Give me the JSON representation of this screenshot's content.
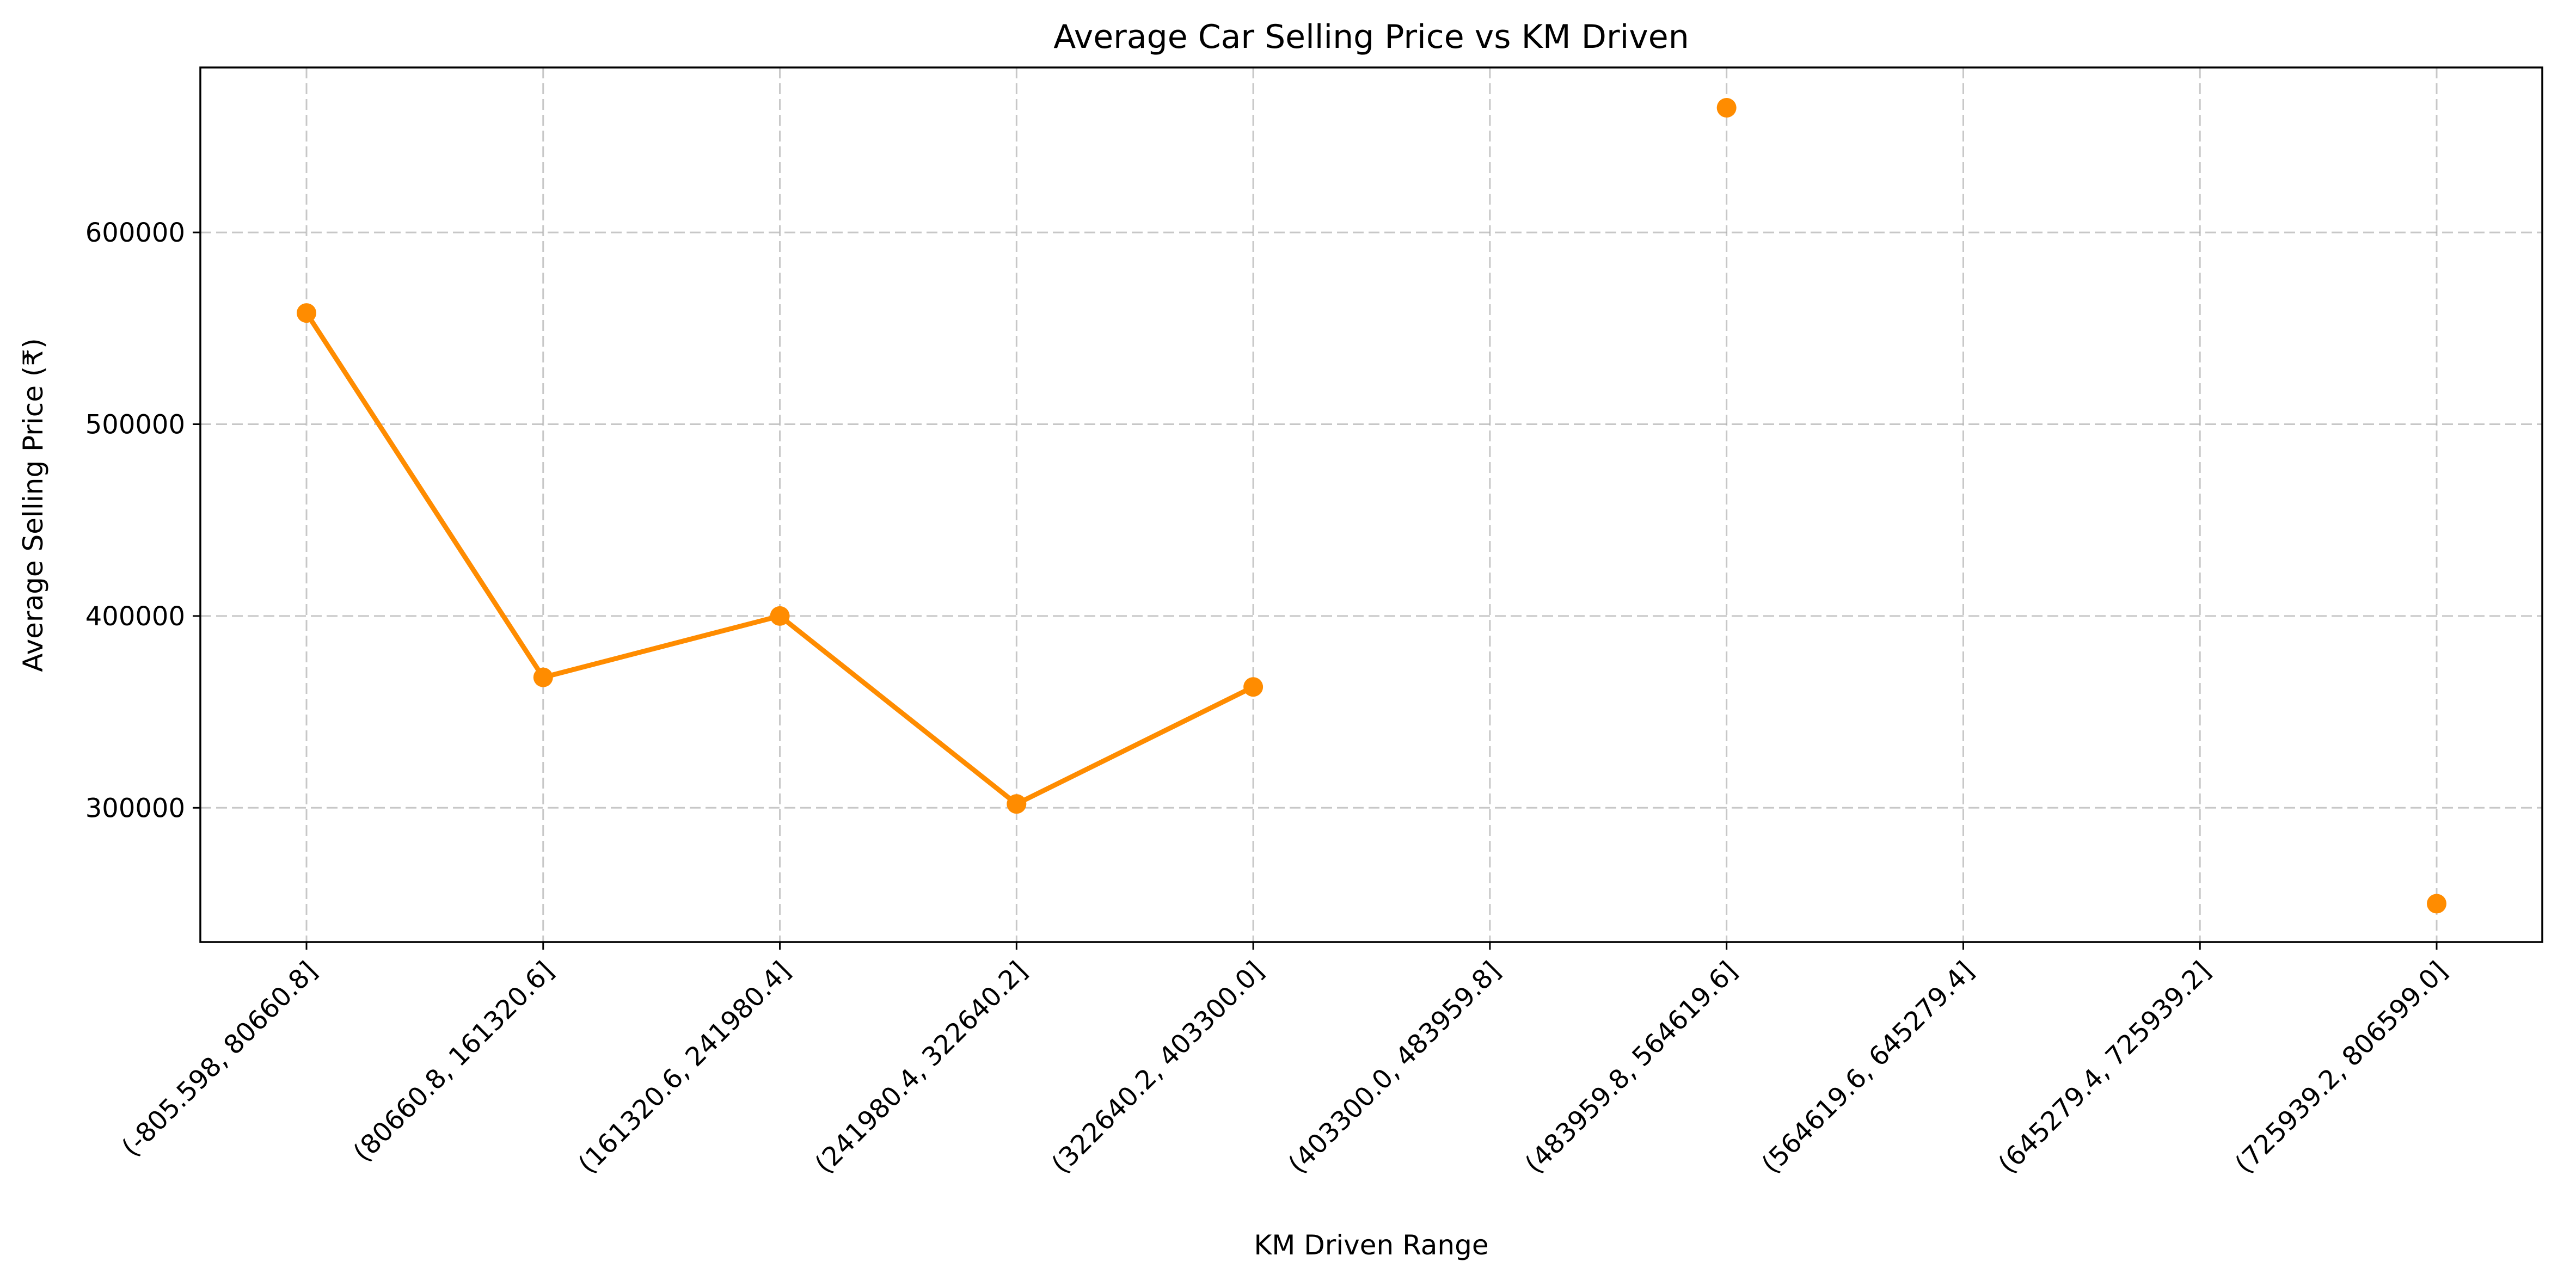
{
  "chart_data": {
    "type": "line",
    "title": "Average Car Selling Price vs KM Driven",
    "xlabel": "KM Driven Range",
    "ylabel": "Average Selling Price (₹)",
    "categories": [
      "(-805.598, 80660.8]",
      "(80660.8, 161320.6]",
      "(161320.6, 241980.4]",
      "(241980.4, 322640.2]",
      "(322640.2, 403300.0]",
      "(403300.0, 483959.8]",
      "(483959.8, 564619.6]",
      "(564619.6, 645279.4]",
      "(645279.4, 725939.2]",
      "(725939.2, 806599.0]"
    ],
    "values": [
      558000,
      368000,
      400000,
      302000,
      363000,
      null,
      665000,
      null,
      null,
      250000
    ],
    "ylim": [
      230000,
      686000
    ],
    "yticks": [
      300000,
      400000,
      500000,
      600000
    ],
    "ytick_labels": [
      "300000",
      "400000",
      "500000",
      "600000"
    ],
    "grid": true,
    "color": "#ff8c00",
    "marker": "circle"
  }
}
